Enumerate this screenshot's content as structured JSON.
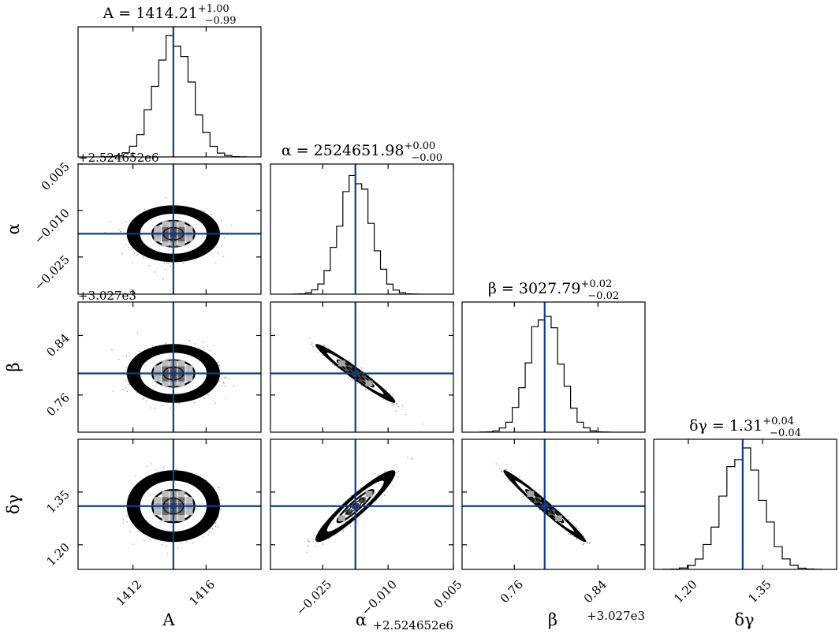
{
  "chart_data": {
    "type": "corner",
    "parameters": [
      {
        "key": "A",
        "label": "A",
        "title_main": "A = 1414.21",
        "err_plus": "+1.00",
        "err_minus": "−0.99",
        "range": [
          1409.0,
          1419.0
        ],
        "truth": 1414.21,
        "sigma": 1.0,
        "ticks": [
          1412,
          1416
        ],
        "tick_labels": [
          "1412",
          "1416"
        ],
        "offset": ""
      },
      {
        "key": "alpha",
        "label": "α",
        "title_main": "α = 2524651.98",
        "err_plus": "+0.00",
        "err_minus": "−0.00",
        "range": [
          -0.037,
          0.005
        ],
        "truth": -0.0175,
        "sigma": 0.0036,
        "ticks": [
          -0.025,
          -0.01,
          0.005
        ],
        "tick_labels": [
          "−0.025",
          "−0.010",
          "0.005"
        ],
        "offset": "+2.524652e6"
      },
      {
        "key": "beta",
        "label": "β",
        "title_main": "β = 3027.79",
        "err_plus": "+0.02",
        "err_minus": "−0.02",
        "range": [
          0.71,
          0.885
        ],
        "truth": 0.789,
        "sigma": 0.0155,
        "ticks": [
          0.76,
          0.84
        ],
        "tick_labels": [
          "0.76",
          "0.84"
        ],
        "offset": "+3.027e3"
      },
      {
        "key": "dgamma",
        "label": "δγ",
        "title_main": "δγ = 1.31",
        "err_plus": "+0.04",
        "err_minus": "−0.04",
        "range": [
          1.13,
          1.5
        ],
        "truth": 1.31,
        "sigma": 0.04,
        "ticks": [
          1.2,
          1.35
        ],
        "tick_labels": [
          "1.20",
          "1.35"
        ],
        "offset": ""
      }
    ],
    "correlations": {
      "alpha-beta": -0.97,
      "alpha-dgamma": 0.93,
      "beta-dgamma": -0.98
    },
    "truth_line_color": "#0b3d91",
    "histogram_color": "#000000",
    "contour_color": "#000000"
  }
}
